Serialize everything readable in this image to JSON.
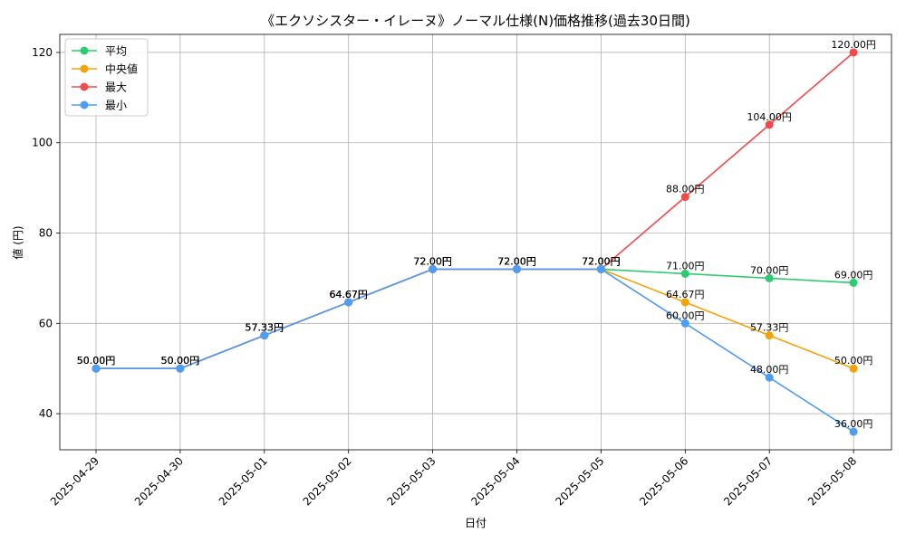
{
  "chart_data": {
    "type": "line",
    "title": "《エクソシスター・イレーヌ》ノーマル仕様(N)価格推移(過去30日間)",
    "xlabel": "日付",
    "ylabel": "値 (円)",
    "ylim": [
      32,
      124
    ],
    "yticks": [
      40,
      60,
      80,
      100,
      120
    ],
    "ytick_labels": [
      "40",
      "60",
      "80",
      "100",
      "120"
    ],
    "grid": true,
    "legend_position": "top-left",
    "categories": [
      "2025-04-29",
      "2025-04-30",
      "2025-05-01",
      "2025-05-02",
      "2025-05-03",
      "2025-05-04",
      "2025-05-05",
      "2025-05-06",
      "2025-05-07",
      "2025-05-08"
    ],
    "series": [
      {
        "name": "平均",
        "color": "#2ecc71",
        "values": [
          50.0,
          50.0,
          57.33,
          64.67,
          72.0,
          72.0,
          72.0,
          71.0,
          70.0,
          69.0
        ],
        "labels": [
          "50.00円",
          "50.00円",
          "57.33円",
          "64.67円",
          "72.00円",
          "72.00円",
          "72.00円",
          "71.00円",
          "70.00円",
          "69.00円"
        ]
      },
      {
        "name": "中央値",
        "color": "#f5a20a",
        "values": [
          50.0,
          50.0,
          57.33,
          64.67,
          72.0,
          72.0,
          72.0,
          64.67,
          57.33,
          50.0
        ],
        "labels": [
          "50.00円",
          "50.00円",
          "57.33円",
          "64.67円",
          "72.00円",
          "72.00円",
          "72.00円",
          "64.67円",
          "57.33円",
          "50.00円"
        ]
      },
      {
        "name": "最大",
        "color": "#ef4b4b",
        "values": [
          50.0,
          50.0,
          57.33,
          64.67,
          72.0,
          72.0,
          72.0,
          88.0,
          104.0,
          120.0
        ],
        "labels": [
          "50.00円",
          "50.00円",
          "57.33円",
          "64.67円",
          "72.00円",
          "72.00円",
          "72.00円",
          "88.00円",
          "104.00円",
          "120.00円"
        ]
      },
      {
        "name": "最小",
        "color": "#4d9cf5",
        "values": [
          50.0,
          50.0,
          57.33,
          64.67,
          72.0,
          72.0,
          72.0,
          60.0,
          48.0,
          36.0
        ],
        "labels": [
          "50.00円",
          "50.00円",
          "57.33円",
          "64.67円",
          "72.00円",
          "72.00円",
          "72.00円",
          "60.00円",
          "48.00円",
          "36.00円"
        ]
      }
    ]
  }
}
